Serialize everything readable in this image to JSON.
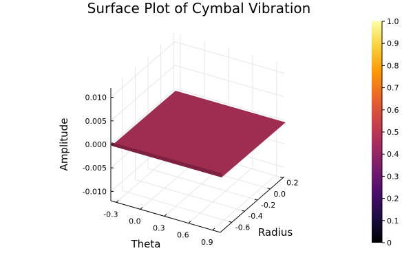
{
  "chart_data": {
    "type": "surface3d",
    "title": "Surface Plot of Cymbal Vibration",
    "xlabel": "Theta",
    "ylabel": "Radius",
    "zlabel": "Amplitude",
    "x_ticks": [
      "-0.3",
      "0.0",
      "0.3",
      "0.6",
      "0.9"
    ],
    "y_ticks": [
      "-0.6",
      "-0.4",
      "-0.2",
      "0.0",
      "0.2"
    ],
    "z_ticks": [
      "-0.010",
      "-0.005",
      "0.000",
      "0.005",
      "0.010"
    ],
    "z_tick_values": [
      -0.01,
      -0.005,
      0.0,
      0.005,
      0.01
    ],
    "zlim": [
      -0.012,
      0.012
    ],
    "surface_value": 0.0,
    "surface_color": "#9e2d4f",
    "colorbar": {
      "colormap": "inferno",
      "range": [
        0,
        1
      ],
      "ticks": [
        "0",
        "0.1",
        "0.2",
        "0.3",
        "0.4",
        "0.5",
        "0.6",
        "0.7",
        "0.8",
        "0.9",
        "1.0"
      ],
      "stops": [
        "#000004",
        "#1b0c41",
        "#4a0c6b",
        "#781c6d",
        "#a52c60",
        "#cf4446",
        "#ed6925",
        "#fb9b06",
        "#f7d13d",
        "#fcffa4"
      ]
    },
    "grid": true,
    "legend": "none"
  }
}
